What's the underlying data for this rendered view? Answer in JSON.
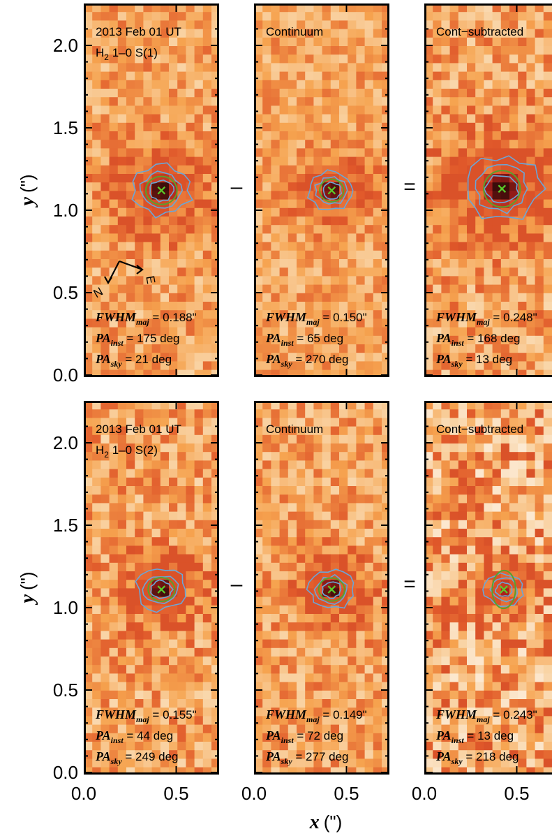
{
  "chart_data": {
    "type": "heatmap",
    "colormap": [
      "#ffffff",
      "#f9d4a6",
      "#f6a34f",
      "#e0582a",
      "#a51e1b",
      "#3a0c0a"
    ],
    "contour_color": "#6aa6d8",
    "ellipse_color": "#5aa02c",
    "centroid_marker_color": "#5acb2a",
    "x_axis": {
      "label": "x",
      "unit": "(\")",
      "ticks": [
        "0.0",
        "0.5"
      ],
      "xlim": [
        0.0,
        0.75
      ]
    },
    "y_axis": {
      "label": "y",
      "unit": "(\")",
      "ticks": [
        "0.0",
        "0.5",
        "1.0",
        "1.5",
        "2.0"
      ],
      "ylim": [
        0.0,
        2.25
      ]
    },
    "operators": {
      "minus": "–",
      "equals": "="
    },
    "compass": {
      "north": "N",
      "east": "E"
    },
    "rows": [
      {
        "epoch": "2013 Feb 01 UT",
        "line_base": "H",
        "line_sub": "2",
        "line_rest": " 1–0 S(1)",
        "panels": [
          {
            "label": "",
            "fwhm": "0.188\"",
            "pa_inst": "175 deg",
            "pa_sky": "21 deg",
            "center": [
              0.42,
              1.12
            ],
            "ellipse": {
              "a": 0.104,
              "b": 0.094,
              "pa_deg": 175
            },
            "peak": 1.0,
            "sigma": 0.085,
            "noise": 0.18
          },
          {
            "label": "Continuum",
            "fwhm": "0.150\"",
            "pa_inst": "65 deg",
            "pa_sky": "270 deg",
            "center": [
              0.42,
              1.12
            ],
            "ellipse": {
              "a": 0.083,
              "b": 0.072,
              "pa_deg": 65
            },
            "peak": 1.0,
            "sigma": 0.065,
            "noise": 0.16
          },
          {
            "label": "Cont−subtracted",
            "fwhm": "0.248\"",
            "pa_inst": "168 deg",
            "pa_sky": "13 deg",
            "center": [
              0.42,
              1.13
            ],
            "ellipse": {
              "a": 0.135,
              "b": 0.11,
              "pa_deg": 168
            },
            "peak": 1.0,
            "sigma": 0.11,
            "noise": 0.2
          }
        ]
      },
      {
        "epoch": "2013 Feb 01 UT",
        "line_base": "H",
        "line_sub": "2",
        "line_rest": " 1–0 S(2)",
        "panels": [
          {
            "label": "",
            "fwhm": "0.155\"",
            "pa_inst": "44 deg",
            "pa_sky": "249 deg",
            "center": [
              0.42,
              1.11
            ],
            "ellipse": {
              "a": 0.088,
              "b": 0.08,
              "pa_deg": 44
            },
            "peak": 1.0,
            "sigma": 0.07,
            "noise": 0.2
          },
          {
            "label": "Continuum",
            "fwhm": "0.149\"",
            "pa_inst": "72 deg",
            "pa_sky": "277 deg",
            "center": [
              0.42,
              1.11
            ],
            "ellipse": {
              "a": 0.085,
              "b": 0.078,
              "pa_deg": 72
            },
            "peak": 1.0,
            "sigma": 0.065,
            "noise": 0.19
          },
          {
            "label": "Cont−subtracted",
            "fwhm": "0.243\"",
            "pa_inst": "13 deg",
            "pa_sky": "218 deg",
            "center": [
              0.43,
              1.11
            ],
            "ellipse": {
              "a": 0.14,
              "b": 0.07,
              "pa_deg": 13
            },
            "peak": 0.8,
            "sigma": 0.055,
            "noise": 0.28
          }
        ]
      }
    ]
  }
}
